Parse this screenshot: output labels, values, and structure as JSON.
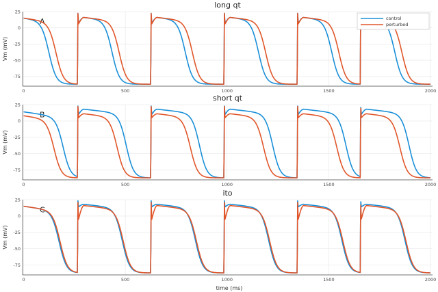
{
  "colors": {
    "control": "#1a8fd8",
    "perturbed": "#e0562a",
    "grid": "#e6e6e6",
    "axis": "#444444"
  },
  "xlabel": "time (ms)",
  "chart_data": [
    {
      "type": "line",
      "title": "long qt",
      "letter": "A",
      "ylabel": "Vm (mV)",
      "xlim": [
        -5,
        2010
      ],
      "ylim": [
        -90,
        25
      ],
      "yticks": [
        25,
        0,
        -25,
        -50,
        -75
      ],
      "xticks": [
        0,
        500,
        1000,
        1500,
        2000
      ],
      "grid": true,
      "legend": {
        "placement": "top-right",
        "entries": [
          "control",
          "perturbed"
        ]
      },
      "beats": [
        0,
        265,
        625,
        985,
        1345,
        1655
      ],
      "series": [
        {
          "name": "control",
          "plateau_start": 15,
          "apd90": 205,
          "resting": -87,
          "spike": 25,
          "notch": 7,
          "early_peak": 16
        },
        {
          "name": "perturbed",
          "plateau_start": 15,
          "apd90": 240,
          "resting": -87,
          "spike": 25,
          "notch": 6,
          "early_peak": 16
        }
      ]
    },
    {
      "type": "line",
      "title": "short qt",
      "letter": "B",
      "ylabel": "Vm (mV)",
      "xlim": [
        -5,
        2010
      ],
      "ylim": [
        -90,
        25
      ],
      "yticks": [
        25,
        0,
        -25,
        -50,
        -75
      ],
      "xticks": [
        0,
        500,
        1000,
        1500,
        2000
      ],
      "grid": true,
      "beats": [
        0,
        265,
        625,
        985,
        1345,
        1655
      ],
      "series": [
        {
          "name": "control",
          "plateau_start": 14,
          "apd90": 275,
          "resting": -87,
          "spike": 25,
          "notch": 10,
          "early_peak": 18
        },
        {
          "name": "perturbed",
          "plateau_start": 8,
          "apd90": 230,
          "resting": -87,
          "spike": 25,
          "notch": 5,
          "early_peak": 11
        }
      ]
    },
    {
      "type": "line",
      "title": "ito",
      "letter": "C",
      "ylabel": "Vm (mV)",
      "xlim": [
        -5,
        2010
      ],
      "ylim": [
        -90,
        25
      ],
      "yticks": [
        25,
        0,
        -25,
        -50,
        -75
      ],
      "xticks": [
        0,
        500,
        1000,
        1500,
        2000
      ],
      "grid": true,
      "beats": [
        0,
        265,
        625,
        985,
        1345,
        1655
      ],
      "series": [
        {
          "name": "control",
          "plateau_start": 15,
          "apd90": 255,
          "resting": -87,
          "spike": 25,
          "notch": 14,
          "early_peak": 18
        },
        {
          "name": "perturbed",
          "plateau_start": 15,
          "apd90": 260,
          "resting": -87,
          "spike": 25,
          "notch": -5,
          "early_peak": 16
        }
      ]
    }
  ]
}
